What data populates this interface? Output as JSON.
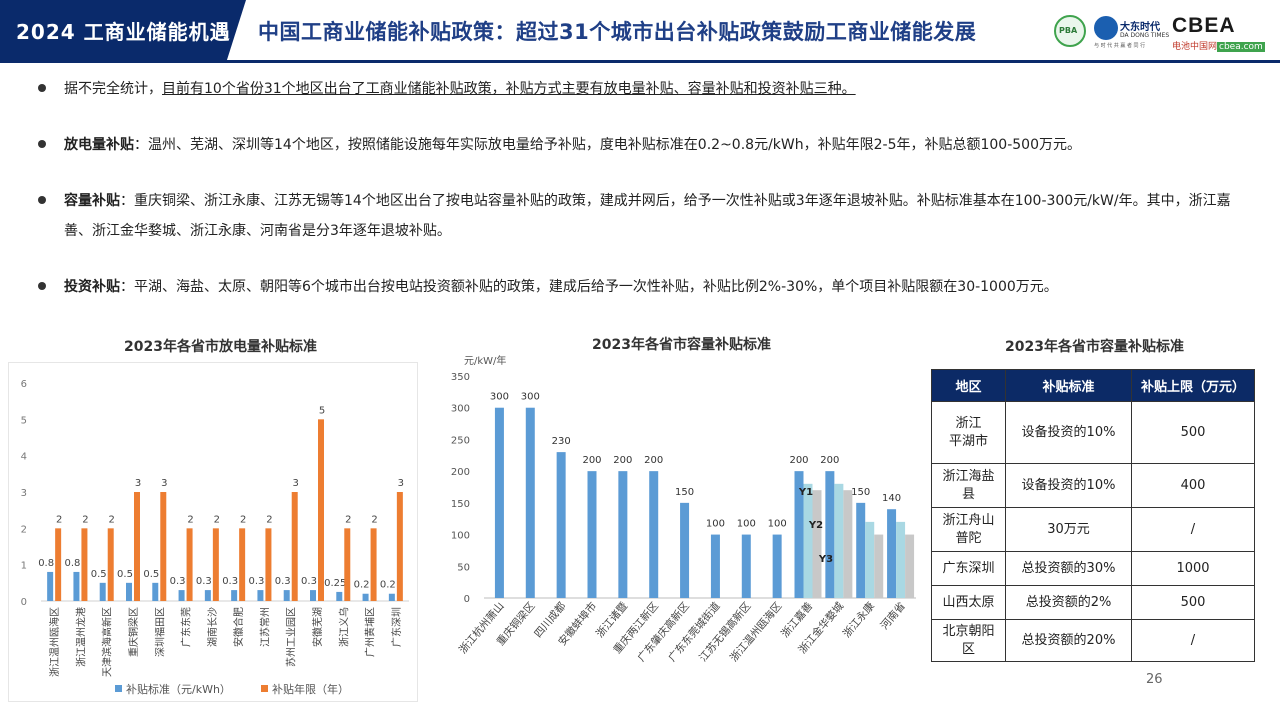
{
  "header": {
    "tag": "2024 工商业储能机遇",
    "title": "中国工商业储能补贴政策：超过31个城市出台补贴政策鼓励工商业储能发展",
    "logo_pba": "PBA",
    "logo_dd_name": "大东时代",
    "logo_dd_sub": "DA DONG TIMES",
    "logo_dd_tag": "与 时 代 共 赢 者 同 行",
    "logo_cbea": "CBEA",
    "logo_cbea_sub": "电池中国网",
    "logo_cbea_url": "cbea.com"
  },
  "bullets": [
    {
      "head": "",
      "text": "据不完全统计，",
      "underlined": "目前有10个省份31个地区出台了工商业储能补贴政策，补贴方式主要有放电量补贴、容量补贴和投资补贴三种。"
    },
    {
      "head": "放电量补贴",
      "text": "：温州、芜湖、深圳等14个地区，按照储能设施每年实际放电量给予补贴，度电补贴标准在0.2~0.8元/kWh，补贴年限2-5年，补贴总额100-500万元。"
    },
    {
      "head": "容量补贴",
      "text": "：重庆铜梁、浙江永康、江苏无锡等14个地区出台了按电站容量补贴的政策，建成并网后，给予一次性补贴或3年逐年退坡补贴。补贴标准基本在100-300元/kW/年。其中，浙江嘉善、浙江金华婺城、浙江永康、河南省是分3年逐年退坡补贴。"
    },
    {
      "head": "投资补贴",
      "text": "：平湖、海盐、太原、朝阳等6个城市出台按电站投资额补贴的政策，建成后给予一次性补贴，补贴比例2%-30%，单个项目补贴限额在30-1000万元。"
    }
  ],
  "chart_data": [
    {
      "type": "bar",
      "title": "2023年各省市放电量补贴标准",
      "categories": [
        "浙江温州瓯海区",
        "浙江温州龙港",
        "天津滨海高新区",
        "重庆铜梁区",
        "深圳福田区",
        "广东东莞",
        "湖南长沙",
        "安徽合肥",
        "江苏常州",
        "苏州工业园区",
        "安徽芜湖",
        "浙江义乌",
        "广州黄埔区",
        "广东深圳"
      ],
      "series": [
        {
          "name": "补贴标准（元/kWh）",
          "color": "#5b9bd5",
          "values": [
            0.8,
            0.8,
            0.5,
            0.5,
            0.5,
            0.3,
            0.3,
            0.3,
            0.3,
            0.3,
            0.3,
            0.25,
            0.2,
            0.2
          ]
        },
        {
          "name": "补贴年限（年）",
          "color": "#ed7d31",
          "values": [
            2,
            2,
            2,
            3,
            3,
            2,
            2,
            2,
            2,
            3,
            5,
            2,
            2,
            3
          ]
        }
      ],
      "yticks": [
        "0",
        "1",
        "2",
        "3",
        "4",
        "5",
        "6"
      ],
      "ylim": [
        0,
        6
      ]
    },
    {
      "type": "bar",
      "title": "2023年各省市容量补贴标准",
      "ylabel": "元/kW/年",
      "categories": [
        "浙江杭州萧山",
        "重庆铜梁区",
        "四川成都",
        "安徽蚌埠市",
        "浙江诸暨",
        "重庆两江新区",
        "广东肇庆高新区",
        "广东东莞城街道",
        "江苏无锡高新区",
        "浙江温州瓯海区",
        "浙江嘉善",
        "浙江金华婺城",
        "浙江永康",
        "河南省"
      ],
      "series": [
        {
          "name": "Y1",
          "color": "#5b9bd5",
          "values": [
            300,
            300,
            230,
            200,
            200,
            200,
            150,
            100,
            100,
            100,
            200,
            200,
            150,
            140
          ]
        },
        {
          "name": "Y2",
          "color": "#a9d8e3",
          "values": [
            null,
            null,
            null,
            null,
            null,
            null,
            null,
            null,
            null,
            null,
            180,
            180,
            120,
            120
          ]
        },
        {
          "name": "Y3",
          "color": "#c8c8c8",
          "values": [
            null,
            null,
            null,
            null,
            null,
            null,
            null,
            null,
            null,
            null,
            170,
            170,
            100,
            100
          ]
        }
      ],
      "labels": [
        "300",
        "300",
        "230",
        "200",
        "200",
        "200",
        "150",
        "100",
        "100",
        "100",
        "200",
        "200",
        "150",
        "140"
      ],
      "yticks": [
        "0",
        "50",
        "100",
        "150",
        "200",
        "250",
        "300",
        "350"
      ],
      "ylim": [
        0,
        350
      ]
    }
  ],
  "table": {
    "title": "2023年各省市容量补贴标准",
    "headers": [
      "地区",
      "补贴标准",
      "补贴上限（万元）"
    ],
    "rows": [
      [
        "浙江\n平湖市",
        "设备投资的10%",
        "500"
      ],
      [
        "浙江海盐\n县",
        "设备投资的10%",
        "400"
      ],
      [
        "浙江舟山\n普陀",
        "30万元",
        "/"
      ],
      [
        "广东深圳",
        "总投资额的30%",
        "1000"
      ],
      [
        "山西太原",
        "总投资额的2%",
        "500"
      ],
      [
        "北京朝阳\n区",
        "总投资额的20%",
        "/"
      ]
    ]
  },
  "page_number": "26"
}
